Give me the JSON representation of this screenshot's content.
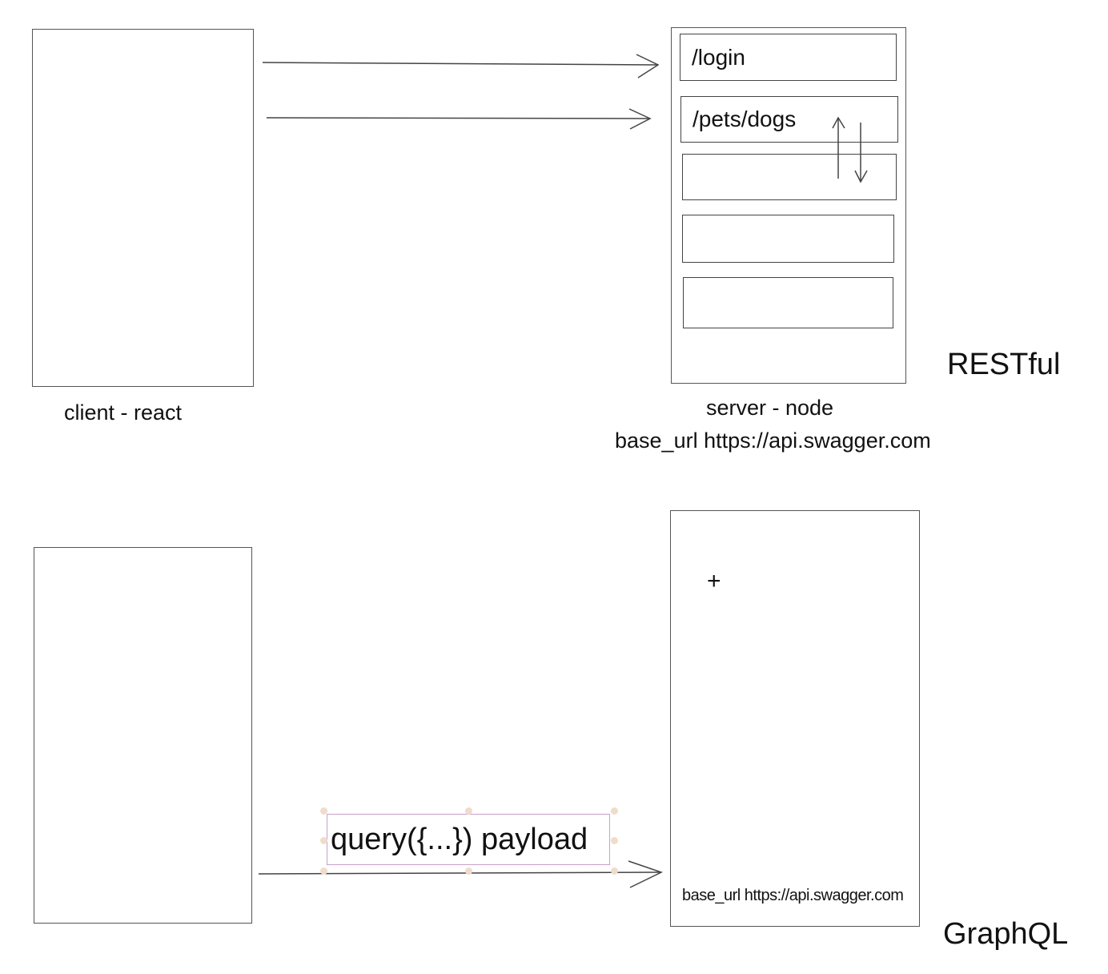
{
  "restful": {
    "client_label": "client - react",
    "server_label": "server - node",
    "base_url": "base_url https://api.swagger.com",
    "title": "RESTful",
    "routes": [
      "/login",
      "/pets/dogs",
      "",
      "",
      ""
    ]
  },
  "graphql": {
    "payload_label": "query({...}) payload",
    "base_url": "base_url https://api.swagger.com",
    "cursor_glyph": "+",
    "title": "GraphQL"
  }
}
